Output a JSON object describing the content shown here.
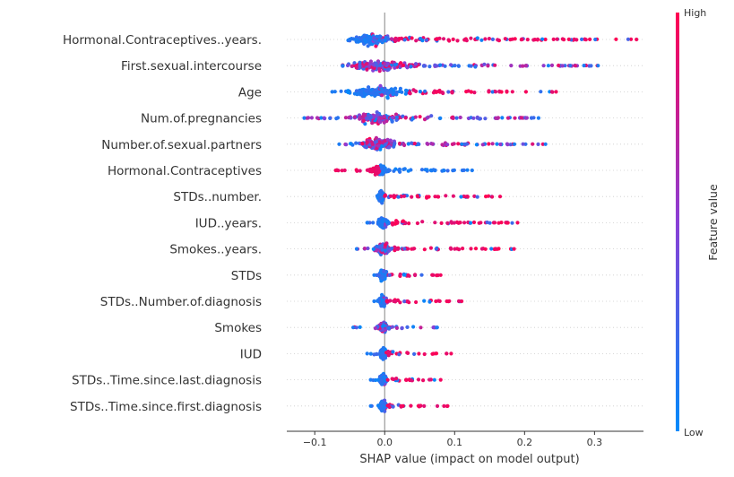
{
  "chart_data": {
    "type": "scatter",
    "subtype": "shap-beeswarm",
    "title": "",
    "xlabel": "SHAP value (impact on model output)",
    "xlim": [
      -0.14,
      0.37
    ],
    "xticks": [
      -0.1,
      0.0,
      0.1,
      0.2,
      0.3
    ],
    "xtick_labels": [
      "−0.1",
      "0.0",
      "0.1",
      "0.2",
      "0.3"
    ],
    "zero_line": true,
    "colorbar": {
      "label": "Feature value",
      "high": "High",
      "low": "Low",
      "high_color": "#ff0052",
      "low_color": "#008bfb"
    },
    "features": [
      {
        "name": "Hormonal.Contraceptives..years.",
        "min": -0.05,
        "max": 0.36,
        "dense": [
          -0.05,
          0.015
        ],
        "low_side": "neg",
        "high_side": "pos"
      },
      {
        "name": "First.sexual.intercourse",
        "min": -0.06,
        "max": 0.305,
        "dense": [
          -0.06,
          0.035
        ],
        "low_side": "mixed",
        "high_side": "mixed"
      },
      {
        "name": "Age",
        "min": -0.075,
        "max": 0.245,
        "dense": [
          -0.05,
          0.03
        ],
        "low_side": "neg",
        "high_side": "pos"
      },
      {
        "name": "Num.of.pregnancies",
        "min": -0.115,
        "max": 0.22,
        "dense": [
          -0.05,
          0.03
        ],
        "low_side": "mixed",
        "high_side": "mixed"
      },
      {
        "name": "Number.of.sexual.partners",
        "min": -0.065,
        "max": 0.23,
        "dense": [
          -0.04,
          0.02
        ],
        "low_side": "mixed",
        "high_side": "mixed"
      },
      {
        "name": "Hormonal.Contraceptives",
        "min": -0.07,
        "max": 0.125,
        "dense": [
          -0.02,
          0.005
        ],
        "low_side": "pos",
        "high_side": "neg"
      },
      {
        "name": "STDs..number.",
        "min": -0.01,
        "max": 0.165,
        "dense": [
          -0.01,
          0.0
        ],
        "low_side": "neg",
        "high_side": "pos"
      },
      {
        "name": "IUD..years.",
        "min": -0.025,
        "max": 0.19,
        "dense": [
          -0.01,
          0.005
        ],
        "low_side": "neg",
        "high_side": "pos"
      },
      {
        "name": "Smokes..years.",
        "min": -0.04,
        "max": 0.185,
        "dense": [
          -0.015,
          0.01
        ],
        "low_side": "mixed",
        "high_side": "pos"
      },
      {
        "name": "STDs",
        "min": -0.015,
        "max": 0.08,
        "dense": [
          -0.008,
          0.003
        ],
        "low_side": "neg",
        "high_side": "pos"
      },
      {
        "name": "STDs..Number.of.diagnosis",
        "min": -0.015,
        "max": 0.11,
        "dense": [
          -0.008,
          0.003
        ],
        "low_side": "neg",
        "high_side": "pos"
      },
      {
        "name": "Smokes",
        "min": -0.045,
        "max": 0.075,
        "dense": [
          -0.01,
          0.005
        ],
        "low_side": "mixed",
        "high_side": "mixed"
      },
      {
        "name": "IUD",
        "min": -0.025,
        "max": 0.095,
        "dense": [
          -0.008,
          0.005
        ],
        "low_side": "neg",
        "high_side": "pos"
      },
      {
        "name": "STDs..Time.since.last.diagnosis",
        "min": -0.02,
        "max": 0.08,
        "dense": [
          -0.008,
          0.003
        ],
        "low_side": "neg",
        "high_side": "pos"
      },
      {
        "name": "STDs..Time.since.first.diagnosis",
        "min": -0.02,
        "max": 0.09,
        "dense": [
          -0.008,
          0.003
        ],
        "low_side": "neg",
        "high_side": "pos"
      }
    ]
  }
}
